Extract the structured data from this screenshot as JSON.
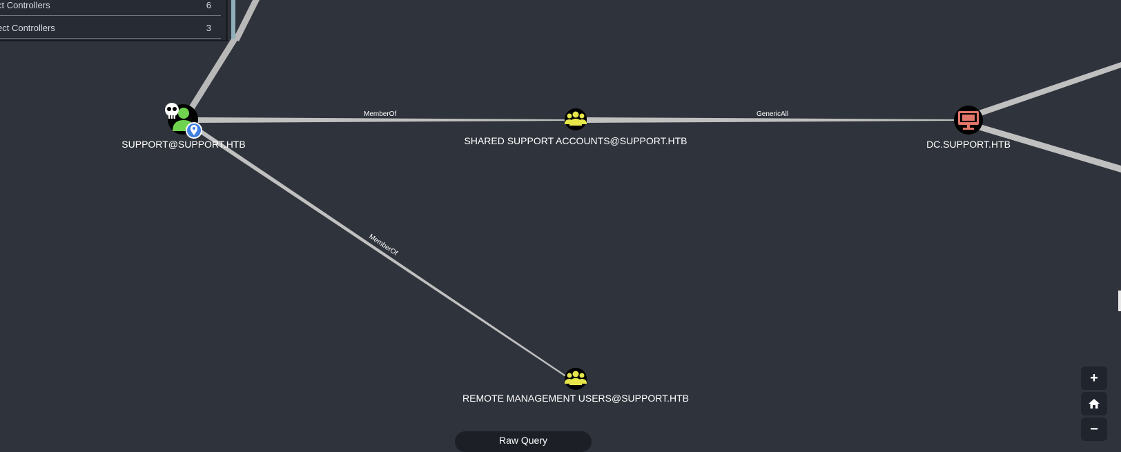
{
  "panel": {
    "rows": [
      {
        "label": "ct Controllers",
        "count": "6"
      },
      {
        "label": "ect Controllers",
        "count": "3"
      }
    ]
  },
  "nodes": {
    "support_user": {
      "label": "SUPPORT@SUPPORT.HTB",
      "icon": "user-icon",
      "color": "#6fd34f"
    },
    "shared_support": {
      "label": "SHARED SUPPORT ACCOUNTS@SUPPORT.HTB",
      "icon": "group-icon",
      "color": "#e6e64a"
    },
    "dc": {
      "label": "DC.SUPPORT.HTB",
      "icon": "computer-icon",
      "color": "#e0756a"
    },
    "remote_mgmt": {
      "label": "REMOTE MANAGEMENT USERS@SUPPORT.HTB",
      "icon": "group-icon",
      "color": "#e6e64a"
    }
  },
  "edges": {
    "member_of_1": "MemberOf",
    "generic_all": "GenericAll",
    "member_of_2": "MemberOf"
  },
  "controls": {
    "zoom_in": "+",
    "home_icon": "home-icon",
    "zoom_out": "−",
    "raw_query": "Raw Query"
  }
}
